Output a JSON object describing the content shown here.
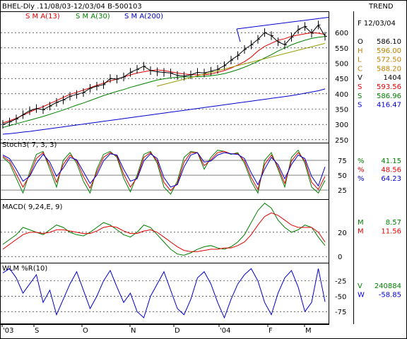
{
  "header": {
    "symbol_range": "BHEL-Dly .11/08/03-12/03/04  B-500103",
    "trend_label": "TREND",
    "sma13_label": "S M A(13)",
    "sma30_label": "S M A(30)",
    "sma200_label": "S M A(200)"
  },
  "colors": {
    "price": "#000000",
    "sma13": "#e00000",
    "sma30": "#008000",
    "sma200": "#0000cc",
    "trendline": "#999900",
    "grid": "#000000",
    "panel_border": "#000000"
  },
  "side_panel": {
    "date": "F 12/03/04",
    "ohlc": [
      {
        "key": "O",
        "value": "586.10",
        "color": "#000000"
      },
      {
        "key": "H",
        "value": "596.00",
        "color": "#c08000"
      },
      {
        "key": "L",
        "value": "572.50",
        "color": "#c08000"
      },
      {
        "key": "C",
        "value": "588.20",
        "color": "#c08000"
      },
      {
        "key": "V",
        "value": "1404",
        "color": "#000000"
      },
      {
        "key": "S",
        "value": "593.56",
        "color": "#e00000"
      },
      {
        "key": "S",
        "value": "586.96",
        "color": "#008000"
      },
      {
        "key": "S",
        "value": "416.47",
        "color": "#0000cc"
      }
    ],
    "stoch": [
      {
        "key": "%",
        "value": "41.15",
        "color": "#008000"
      },
      {
        "key": "%",
        "value": "48.56",
        "color": "#e00000"
      },
      {
        "key": "%",
        "value": "64.23",
        "color": "#0000cc"
      }
    ],
    "macd": [
      {
        "key": "M",
        "value": "8.57",
        "color": "#008000"
      },
      {
        "key": "M",
        "value": "11.56",
        "color": "#e00000"
      }
    ],
    "wlm": [
      {
        "key": "V",
        "value": "240884",
        "color": "#008000"
      },
      {
        "key": "W",
        "value": "-58.85",
        "color": "#0000cc"
      }
    ]
  },
  "panels": {
    "stoch_label": "Stoch3( 7, 3, 3)",
    "macd_label": "MACD( 9,24,E, 9)",
    "wlm_label": "WLM %R(10)"
  },
  "chart_data": [
    {
      "type": "line",
      "title": "BHEL-Dly .11/08/03-12/03/04  B-500103",
      "ylim": [
        245,
        665
      ],
      "yticks": [
        250,
        300,
        350,
        400,
        450,
        500,
        550,
        600
      ],
      "x_labels": [
        "'03",
        "S",
        "O",
        "N",
        "D",
        "'04",
        "F",
        "M"
      ],
      "series": [
        {
          "name": "S M A(13)",
          "values": [
            305,
            312,
            320,
            330,
            340,
            350,
            358,
            368,
            378,
            388,
            398,
            405,
            412,
            420,
            428,
            435,
            442,
            448,
            455,
            462,
            468,
            472,
            476,
            478,
            476,
            472,
            468,
            465,
            463,
            462,
            462,
            465,
            470,
            476,
            484,
            494,
            505,
            520,
            540,
            555,
            565,
            575,
            580,
            588,
            592,
            596,
            600,
            598,
            594
          ]
        },
        {
          "name": "S M A(30)",
          "values": [
            290,
            296,
            302,
            308,
            314,
            320,
            326,
            333,
            340,
            347,
            355,
            363,
            370,
            378,
            386,
            394,
            401,
            408,
            414,
            421,
            427,
            433,
            439,
            445,
            449,
            452,
            454,
            455,
            456,
            456,
            457,
            459,
            462,
            466,
            472,
            479,
            487,
            496,
            506,
            517,
            528,
            540,
            550,
            560,
            568,
            575,
            581,
            585,
            587
          ]
        },
        {
          "name": "S M A(200)",
          "values": [
            268,
            270,
            272,
            275,
            277,
            280,
            283,
            286,
            289,
            292,
            295,
            298,
            301,
            304,
            307,
            310,
            313,
            316,
            319,
            322,
            325,
            328,
            331,
            334,
            337,
            340,
            343,
            346,
            349,
            352,
            355,
            358,
            361,
            364,
            367,
            370,
            373,
            376,
            379,
            382,
            385,
            388,
            391,
            394,
            398,
            402,
            406,
            410,
            416
          ]
        },
        {
          "name": "Close",
          "values": [
            300,
            308,
            318,
            332,
            345,
            352,
            348,
            360,
            372,
            380,
            392,
            398,
            404,
            418,
            425,
            430,
            450,
            448,
            455,
            470,
            480,
            490,
            476,
            472,
            470,
            468,
            460,
            458,
            462,
            470,
            468,
            474,
            480,
            492,
            510,
            525,
            545,
            560,
            578,
            600,
            590,
            570,
            560,
            585,
            610,
            620,
            598,
            625,
            588
          ]
        }
      ]
    },
    {
      "type": "line",
      "title": "Stoch3( 7, 3, 3)",
      "ylim": [
        12,
        100
      ],
      "yticks": [
        25,
        50,
        75
      ],
      "series": [
        {
          "name": "%K",
          "values": [
            80,
            70,
            45,
            20,
            55,
            85,
            90,
            60,
            30,
            75,
            88,
            70,
            40,
            20,
            60,
            85,
            90,
            80,
            45,
            22,
            50,
            85,
            90,
            70,
            30,
            18,
            40,
            80,
            90,
            88,
            60,
            80,
            92,
            90,
            85,
            88,
            70,
            40,
            20,
            75,
            88,
            60,
            30,
            80,
            92,
            70,
            30,
            20,
            41
          ]
        },
        {
          "name": "%D",
          "values": [
            82,
            74,
            52,
            30,
            50,
            78,
            88,
            66,
            38,
            68,
            84,
            74,
            48,
            28,
            55,
            80,
            88,
            82,
            52,
            30,
            46,
            80,
            88,
            74,
            38,
            24,
            36,
            72,
            88,
            88,
            66,
            76,
            88,
            90,
            86,
            86,
            74,
            46,
            26,
            68,
            84,
            64,
            36,
            74,
            88,
            74,
            38,
            26,
            48
          ]
        },
        {
          "name": "%Slow",
          "values": [
            84,
            78,
            60,
            40,
            48,
            70,
            85,
            72,
            48,
            62,
            80,
            76,
            56,
            36,
            50,
            74,
            86,
            84,
            60,
            40,
            44,
            74,
            86,
            78,
            46,
            30,
            34,
            64,
            84,
            88,
            72,
            74,
            84,
            88,
            86,
            85,
            78,
            54,
            34,
            60,
            80,
            68,
            44,
            68,
            84,
            78,
            48,
            32,
            64
          ]
        }
      ]
    },
    {
      "type": "line",
      "title": "MACD( 9,24,E, 9)",
      "ylim": [
        -4,
        45
      ],
      "yticks": [
        0,
        20
      ],
      "series": [
        {
          "name": "MACD",
          "values": [
            10,
            14,
            18,
            24,
            22,
            20,
            18,
            22,
            26,
            24,
            20,
            18,
            17,
            20,
            24,
            28,
            26,
            22,
            18,
            16,
            20,
            26,
            24,
            18,
            12,
            6,
            2,
            1,
            3,
            6,
            8,
            9,
            7,
            6,
            8,
            12,
            18,
            28,
            38,
            44,
            40,
            30,
            24,
            20,
            22,
            26,
            24,
            16,
            9
          ]
        },
        {
          "name": "Signal",
          "values": [
            6,
            10,
            14,
            18,
            20,
            20,
            19,
            20,
            22,
            22,
            21,
            20,
            19,
            19,
            21,
            24,
            25,
            24,
            21,
            19,
            19,
            21,
            22,
            20,
            16,
            12,
            8,
            5,
            4,
            4,
            5,
            6,
            6,
            7,
            7,
            9,
            12,
            18,
            26,
            33,
            36,
            34,
            30,
            26,
            24,
            24,
            24,
            20,
            12
          ]
        }
      ]
    },
    {
      "type": "line",
      "title": "WLM %R(10)",
      "ylim": [
        -92,
        0
      ],
      "yticks": [
        -25,
        -50,
        -75
      ],
      "series": [
        {
          "name": "%R",
          "values": [
            -12,
            -5,
            -20,
            -45,
            -30,
            -15,
            -60,
            -40,
            -80,
            -55,
            -30,
            -10,
            -40,
            -70,
            -50,
            -25,
            -8,
            -35,
            -60,
            -45,
            -75,
            -85,
            -50,
            -30,
            -10,
            -40,
            -70,
            -80,
            -55,
            -20,
            -10,
            -30,
            -60,
            -85,
            -55,
            -30,
            -15,
            -5,
            -25,
            -60,
            -80,
            -45,
            -20,
            -8,
            -35,
            -75,
            -60,
            -5,
            -59
          ]
        }
      ]
    }
  ]
}
